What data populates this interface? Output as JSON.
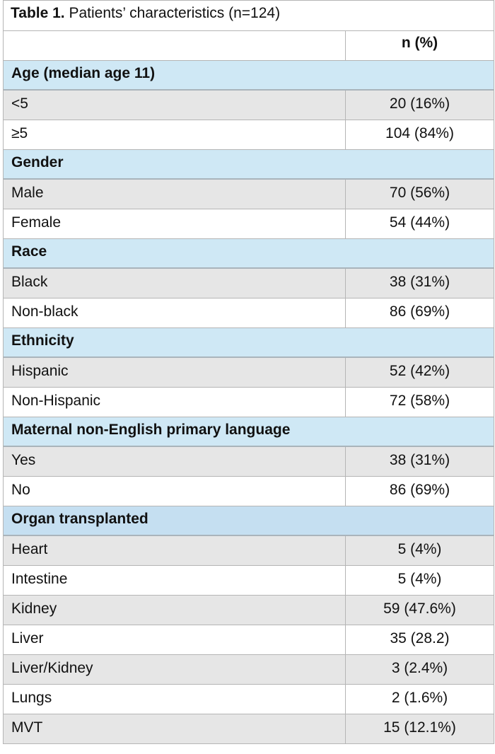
{
  "caption": {
    "bold": "Table 1.",
    "rest": " Patients’ characteristics (n=124)"
  },
  "header": {
    "col1": "",
    "col2": "n (%)"
  },
  "sections": [
    {
      "title": "Age (median age 11)",
      "rows": [
        {
          "label": "<5",
          "value": "20 (16%)"
        },
        {
          "label": "≥5",
          "value": "104 (84%)"
        }
      ]
    },
    {
      "title": "Gender",
      "rows": [
        {
          "label": "Male",
          "value": "70 (56%)"
        },
        {
          "label": "Female",
          "value": "54 (44%)"
        }
      ]
    },
    {
      "title": "Race",
      "rows": [
        {
          "label": "Black",
          "value": "38 (31%)"
        },
        {
          "label": "Non-black",
          "value": "86 (69%)"
        }
      ]
    },
    {
      "title": "Ethnicity",
      "rows": [
        {
          "label": "Hispanic",
          "value": "52 (42%)"
        },
        {
          "label": "Non-Hispanic",
          "value": "72 (58%)"
        }
      ]
    },
    {
      "title": "Maternal non-English primary language",
      "rows": [
        {
          "label": "Yes",
          "value": "38 (31%)"
        },
        {
          "label": "No",
          "value": "86 (69%)"
        }
      ]
    },
    {
      "title": "Organ transplanted",
      "rows": [
        {
          "label": "Heart",
          "value": "5 (4%)"
        },
        {
          "label": "Intestine",
          "value": "5 (4%)"
        },
        {
          "label": "Kidney",
          "value": "59 (47.6%)"
        },
        {
          "label": "Liver",
          "value": "35 (28.2)"
        },
        {
          "label": "Liver/Kidney",
          "value": "3 (2.4%)"
        },
        {
          "label": "Lungs",
          "value": "2 (1.6%)"
        },
        {
          "label": "MVT",
          "value": "15 (12.1%)"
        }
      ]
    }
  ],
  "colors": {
    "section_bg": "#cfe8f5",
    "shaded_row": "#e6e6e6",
    "border": "#b5b5b5"
  }
}
